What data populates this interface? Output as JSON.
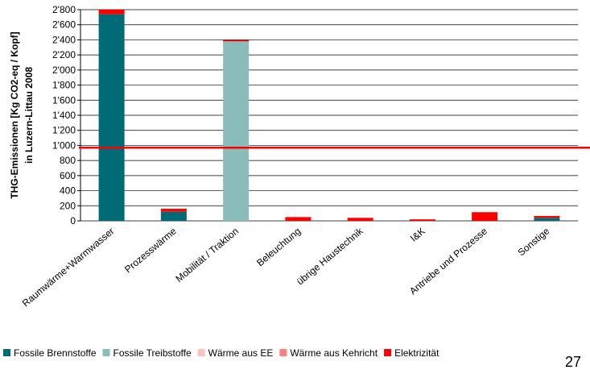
{
  "chart_data": {
    "type": "stacked_bar",
    "ylabel": [
      "THG-Emissionen [Kg CO2-eq / Kopf]",
      "in Luzern-Littau 2008"
    ],
    "categories": [
      "Raumwärme+Warmwasser",
      "Prozesswärme",
      "Mobilität / Traktion",
      "Beleuchtung",
      "übrige Haustechnik",
      "I&K",
      "Antriebe und Prozesse",
      "Sonstige"
    ],
    "series": [
      {
        "name": "Fossile Brennstoffe",
        "color": "#006b77",
        "values": [
          2740,
          120,
          0,
          0,
          0,
          0,
          0,
          40
        ]
      },
      {
        "name": "Fossile Treibstoffe",
        "color": "#8bbcbc",
        "values": [
          0,
          0,
          2380,
          0,
          0,
          0,
          0,
          0
        ]
      },
      {
        "name": "Wärme aus EE",
        "color": "#ffc0c0",
        "values": [
          0,
          0,
          0,
          0,
          0,
          0,
          0,
          0
        ]
      },
      {
        "name": "Wärme aus Kehricht",
        "color": "#ff8080",
        "values": [
          0,
          0,
          0,
          0,
          0,
          0,
          0,
          0
        ]
      },
      {
        "name": "Elektrizität",
        "color": "#ff0000",
        "values": [
          60,
          40,
          20,
          50,
          40,
          20,
          115,
          25
        ]
      }
    ],
    "ylim": [
      0,
      2800
    ],
    "yticks": [
      0,
      200,
      400,
      600,
      800,
      {
        "value": 1000,
        "label": "1'000"
      },
      {
        "value": 1200,
        "label": "1'200"
      },
      {
        "value": 1400,
        "label": "1'400"
      },
      {
        "value": 1600,
        "label": "1'600"
      },
      {
        "value": 1800,
        "label": "1'800"
      },
      {
        "value": 2000,
        "label": "2'000"
      },
      {
        "value": 2200,
        "label": "2'200"
      },
      {
        "value": 2400,
        "label": "2'400"
      },
      {
        "value": 2600,
        "label": "2'600"
      },
      {
        "value": 2800,
        "label": "2'800"
      }
    ],
    "grid": true,
    "reference_line": {
      "value": 970,
      "color": "#ff0000"
    },
    "legend": "bottom",
    "page_number": "27"
  }
}
